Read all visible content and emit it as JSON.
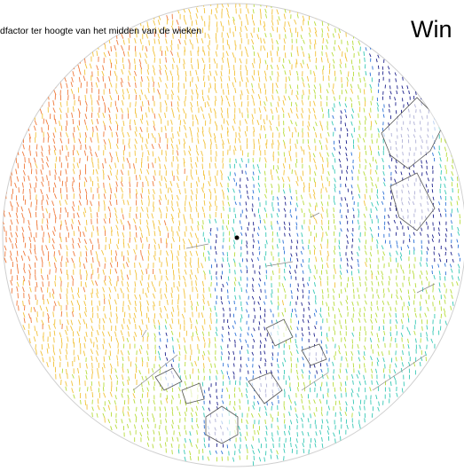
{
  "title": "Win",
  "caption": "dfactor ter hoogte van het midden van de wieken",
  "colors": {
    "high": "#f07a3c",
    "mid_high": "#f2c23a",
    "mid": "#b7dc3a",
    "mid_low": "#35c8b5",
    "low": "#2a6fd6",
    "lowest": "#1b1f8a",
    "outline": "#888888",
    "building": "#555555"
  },
  "icons": [
    "wind-turbine-marker-icon"
  ]
}
